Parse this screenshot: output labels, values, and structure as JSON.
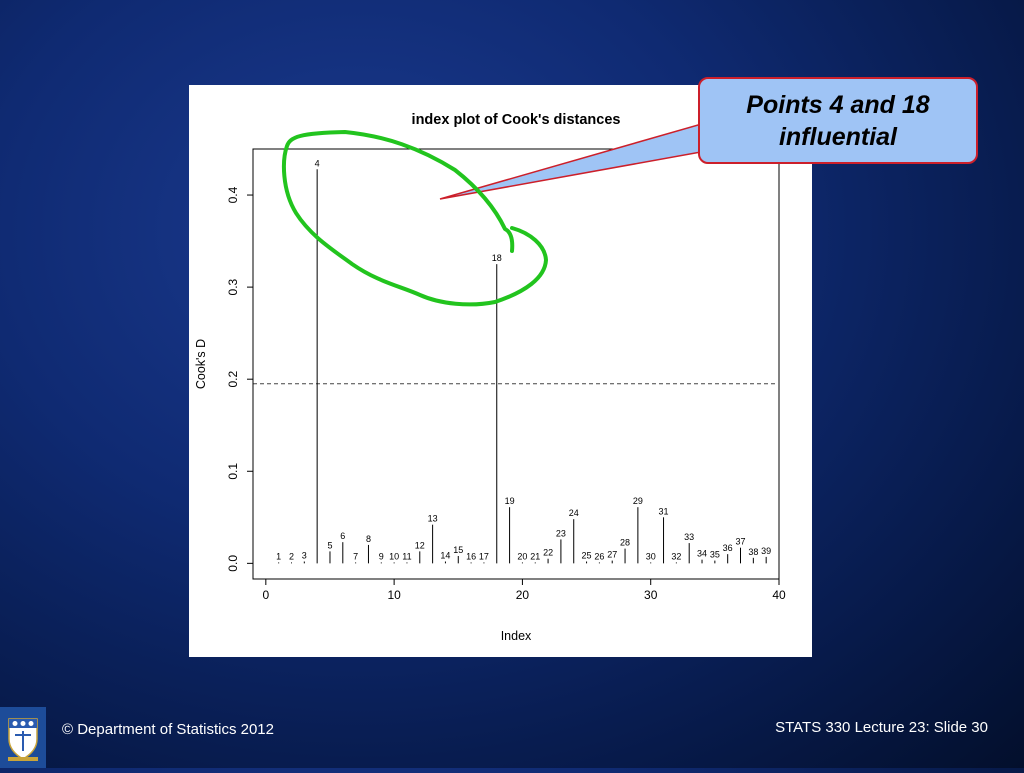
{
  "callout": {
    "text_line1": "Points 4 and 18",
    "text_line2": "influential"
  },
  "footer": {
    "left": "© Department of Statistics 2012",
    "right": "STATS 330 Lecture 23: Slide 30"
  },
  "logo": {
    "icon": "university-crest-icon"
  },
  "colors": {
    "background": "#0f2a72",
    "callout_fill": "#9fc4f5",
    "callout_border": "#cc1f2a",
    "highlight_ellipse": "#22c41e"
  },
  "chart_data": {
    "type": "bar",
    "title": "index plot of Cook's distances",
    "xlabel": "Index",
    "ylabel": "Cook's D",
    "xlim": [
      -1,
      40
    ],
    "ylim": [
      -0.017,
      0.45
    ],
    "xticks": [
      0,
      10,
      20,
      30,
      40
    ],
    "yticks": [
      0.0,
      0.1,
      0.2,
      0.3,
      0.4
    ],
    "ytick_labels": [
      "0.0",
      "0.1",
      "0.2",
      "0.3",
      "0.4"
    ],
    "reference_line": {
      "y": 0.195,
      "style": "dashed"
    },
    "grid": false,
    "x": [
      1,
      2,
      3,
      4,
      5,
      6,
      7,
      8,
      9,
      10,
      11,
      12,
      13,
      14,
      15,
      16,
      17,
      18,
      19,
      20,
      21,
      22,
      23,
      24,
      25,
      26,
      27,
      28,
      29,
      30,
      31,
      32,
      33,
      34,
      35,
      36,
      37,
      38,
      39
    ],
    "point_labels": [
      "1",
      "2",
      "3",
      "4",
      "5",
      "6",
      "7",
      "8",
      "9",
      "10",
      "11",
      "12",
      "13",
      "14",
      "15",
      "16",
      "17",
      "18",
      "19",
      "20",
      "21",
      "22",
      "23",
      "24",
      "25",
      "26",
      "27",
      "28",
      "29",
      "30",
      "31",
      "32",
      "33",
      "34",
      "35",
      "36",
      "37",
      "38",
      "39"
    ],
    "values": [
      0.001,
      0.001,
      0.002,
      0.428,
      0.013,
      0.023,
      0.001,
      0.02,
      0.001,
      0.001,
      0.001,
      0.013,
      0.042,
      0.002,
      0.008,
      0.001,
      0.001,
      0.325,
      0.061,
      0.001,
      0.001,
      0.005,
      0.026,
      0.048,
      0.002,
      0.001,
      0.003,
      0.016,
      0.061,
      0.001,
      0.05,
      0.001,
      0.022,
      0.004,
      0.003,
      0.01,
      0.017,
      0.006,
      0.007
    ]
  }
}
